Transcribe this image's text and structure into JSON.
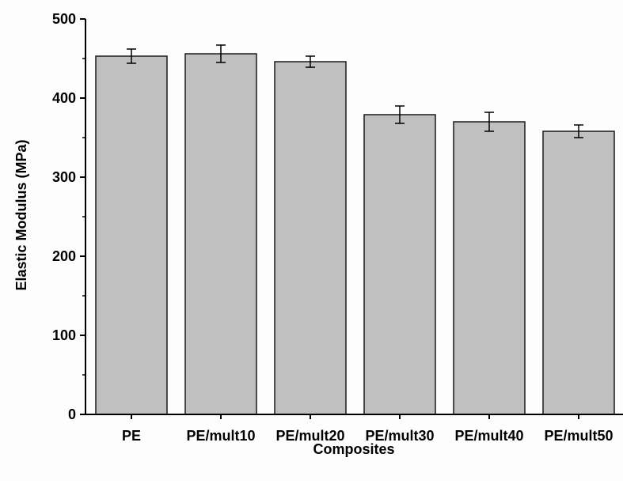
{
  "chart_data": {
    "type": "bar",
    "title": "",
    "xlabel": "Composites",
    "ylabel": "Elastic Modulus (MPa)",
    "ylim": [
      0,
      500
    ],
    "yticks": [
      0,
      100,
      200,
      300,
      400,
      500
    ],
    "categories": [
      "PE",
      "PE/mult10",
      "PE/mult20",
      "PE/mult30",
      "PE/mult40",
      "PE/mult50"
    ],
    "values": [
      453,
      456,
      446,
      379,
      370,
      358
    ],
    "errors": [
      9,
      11,
      7,
      11,
      12,
      8
    ],
    "grid": false,
    "legend": "none",
    "colors": {
      "bar_fill": "#c0c0c0",
      "bar_stroke": "#1a1a1a",
      "axis": "#000000"
    }
  }
}
